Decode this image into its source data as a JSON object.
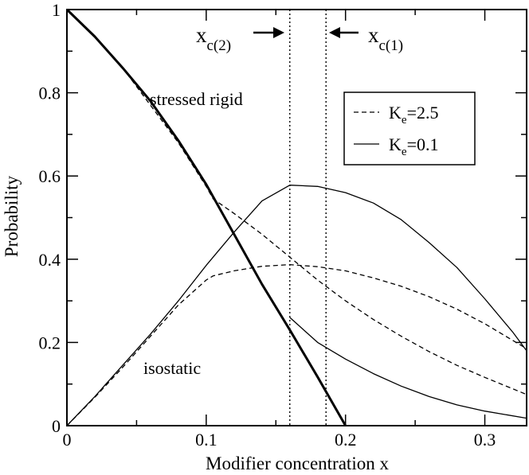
{
  "chart_data": {
    "type": "line",
    "title": "",
    "xlabel": "Modifier concentration x",
    "ylabel": "Probability",
    "xlim": [
      0,
      0.33
    ],
    "ylim": [
      0,
      1
    ],
    "x_ticks": [
      0,
      0.1,
      0.2,
      0.3
    ],
    "y_ticks": [
      0,
      0.2,
      0.4,
      0.6,
      0.8,
      1
    ],
    "x_tick_labels": [
      "0",
      "0.1",
      "0.2",
      "0.3"
    ],
    "y_tick_labels": [
      "0",
      "0.2",
      "0.4",
      "0.6",
      "0.8",
      "1"
    ],
    "grid": false,
    "legend": {
      "placement": "top-right",
      "entries": [
        {
          "symbol": "K",
          "subscript": "e",
          "value": "=2.5",
          "style": "dashed"
        },
        {
          "symbol": "K",
          "subscript": "e",
          "value": "=0.1",
          "style": "solid"
        }
      ]
    },
    "annotations": {
      "stressed_rigid": "stressed rigid",
      "isostatic": "isostatic",
      "xc2": {
        "base": "x",
        "sub": "c(2)"
      },
      "xc1": {
        "base": "x",
        "sub": "c(1)"
      }
    },
    "vertical_lines": [
      {
        "name": "xc2",
        "x": 0.16,
        "style": "dotted"
      },
      {
        "name": "xc1",
        "x": 0.186,
        "style": "dotted"
      }
    ],
    "series": [
      {
        "style": "solid",
        "width": 3,
        "points": [
          [
            0,
            1
          ],
          [
            0.02,
            0.935
          ],
          [
            0.04,
            0.86
          ],
          [
            0.06,
            0.78
          ],
          [
            0.08,
            0.685
          ],
          [
            0.1,
            0.58
          ],
          [
            0.12,
            0.46
          ],
          [
            0.14,
            0.34
          ],
          [
            0.16,
            0.23
          ],
          [
            0.18,
            0.117
          ],
          [
            0.2,
            0
          ]
        ]
      },
      {
        "style": "dashed",
        "width": 1.3,
        "points": [
          [
            0,
            1
          ],
          [
            0.02,
            0.935
          ],
          [
            0.04,
            0.86
          ],
          [
            0.06,
            0.77
          ],
          [
            0.08,
            0.68
          ],
          [
            0.1,
            0.575
          ],
          [
            0.105,
            0.545
          ],
          [
            0.12,
            0.51
          ],
          [
            0.14,
            0.46
          ],
          [
            0.16,
            0.405
          ],
          [
            0.18,
            0.35
          ],
          [
            0.2,
            0.3
          ],
          [
            0.22,
            0.255
          ],
          [
            0.24,
            0.215
          ],
          [
            0.26,
            0.178
          ],
          [
            0.28,
            0.145
          ],
          [
            0.3,
            0.116
          ],
          [
            0.33,
            0.075
          ]
        ]
      },
      {
        "style": "solid",
        "width": 1.3,
        "points": [
          [
            0.16,
            0.26
          ],
          [
            0.18,
            0.2
          ],
          [
            0.2,
            0.16
          ],
          [
            0.22,
            0.125
          ],
          [
            0.24,
            0.095
          ],
          [
            0.26,
            0.07
          ],
          [
            0.28,
            0.05
          ],
          [
            0.3,
            0.035
          ],
          [
            0.33,
            0.018
          ]
        ]
      },
      {
        "style": "solid",
        "width": 1.3,
        "points": [
          [
            0,
            0
          ],
          [
            0.02,
            0.07
          ],
          [
            0.04,
            0.145
          ],
          [
            0.06,
            0.22
          ],
          [
            0.08,
            0.3
          ],
          [
            0.1,
            0.385
          ],
          [
            0.12,
            0.465
          ],
          [
            0.14,
            0.54
          ],
          [
            0.16,
            0.578
          ],
          [
            0.18,
            0.575
          ],
          [
            0.2,
            0.56
          ],
          [
            0.22,
            0.535
          ],
          [
            0.24,
            0.495
          ],
          [
            0.26,
            0.44
          ],
          [
            0.28,
            0.38
          ],
          [
            0.3,
            0.305
          ],
          [
            0.32,
            0.225
          ],
          [
            0.33,
            0.18
          ]
        ]
      },
      {
        "style": "dashed",
        "width": 1.3,
        "points": [
          [
            0,
            0
          ],
          [
            0.02,
            0.068
          ],
          [
            0.04,
            0.14
          ],
          [
            0.06,
            0.215
          ],
          [
            0.08,
            0.29
          ],
          [
            0.1,
            0.35
          ],
          [
            0.105,
            0.36
          ],
          [
            0.12,
            0.372
          ],
          [
            0.14,
            0.383
          ],
          [
            0.16,
            0.387
          ],
          [
            0.18,
            0.382
          ],
          [
            0.2,
            0.372
          ],
          [
            0.22,
            0.355
          ],
          [
            0.24,
            0.335
          ],
          [
            0.26,
            0.31
          ],
          [
            0.28,
            0.28
          ],
          [
            0.3,
            0.245
          ],
          [
            0.33,
            0.185
          ]
        ]
      }
    ]
  }
}
